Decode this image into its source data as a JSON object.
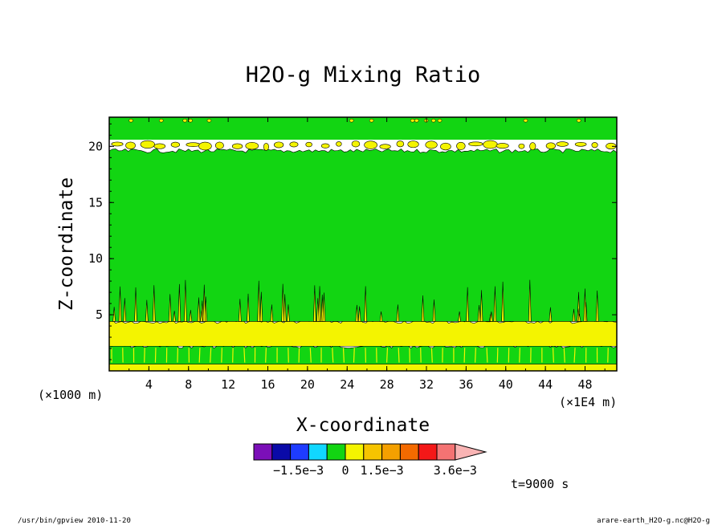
{
  "chart_data": {
    "type": "heatmap",
    "title": "H2O-g Mixing Ratio",
    "xlabel": "X-coordinate",
    "ylabel": "Z-coordinate",
    "x_unit_left": "(×1000 m)",
    "x_unit_right": "(×1E4 m)",
    "x_ticks": [
      "4",
      "8",
      "12",
      "16",
      "20",
      "24",
      "28",
      "32",
      "36",
      "40",
      "44",
      "48"
    ],
    "y_ticks": [
      "5",
      "10",
      "15",
      "20"
    ],
    "xlim": [
      0,
      51.2
    ],
    "ylim": [
      0,
      22.6
    ],
    "colorbar_labels": [
      "−1.5e−3",
      "0",
      "1.5e−3",
      "3.6e−3"
    ],
    "colorbar_colors": [
      "#7b0fb8",
      "#0a0aa8",
      "#1e3cff",
      "#11d7ff",
      "#12d512",
      "#f4f400",
      "#f6c400",
      "#f4a000",
      "#f46a00",
      "#f41818",
      "#f47373",
      "#f9b4b4"
    ],
    "layers": [
      {
        "level": "positive (yellow)",
        "z_from": 0,
        "z_to": 0.6,
        "color": "#f4f400"
      },
      {
        "level": "zero (green)",
        "z_from": 0.6,
        "z_to": 2.2,
        "color": "#12d512"
      },
      {
        "level": "positive (yellow)",
        "z_from": 2.2,
        "z_to": 4.4,
        "color": "#f4f400"
      },
      {
        "level": "zero (green)",
        "z_from": 4.4,
        "z_to": 19.6,
        "color": "#12d512"
      },
      {
        "level": "positive (yellow) patches",
        "z_from": 19.6,
        "z_to": 20.6,
        "color": "#f4f400"
      },
      {
        "level": "zero (green)",
        "z_from": 20.6,
        "z_to": 22.6,
        "color": "#12d512"
      }
    ],
    "grid": false,
    "legend": "colorbar-bottom"
  },
  "time_label": "t=9000 s",
  "footer": {
    "left": "/usr/bin/gpview   2010-11-20",
    "right": "arare-earth_H2O-g.nc@H2O-g"
  },
  "colors": {
    "background": "#12d512",
    "moist": "#f4f400",
    "frame": "#000000"
  }
}
